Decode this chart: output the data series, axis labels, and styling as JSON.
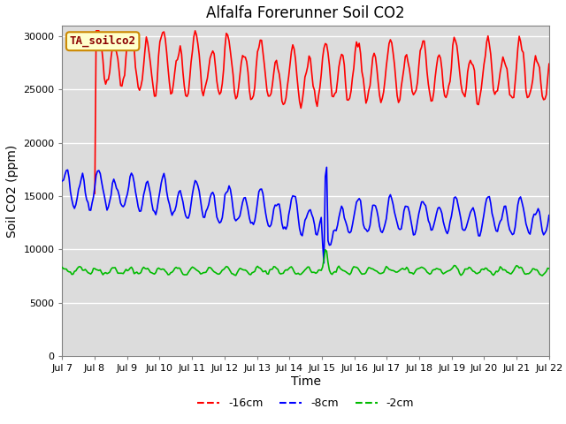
{
  "title": "Alfalfa Forerunner Soil CO2",
  "xlabel": "Time",
  "ylabel": "Soil CO2 (ppm)",
  "annotation": "TA_soilco2",
  "ylim": [
    0,
    31000
  ],
  "yticks": [
    0,
    5000,
    10000,
    15000,
    20000,
    25000,
    30000
  ],
  "xtick_labels": [
    "Jul 7",
    "Jul 8",
    "Jul 9",
    "Jul 10",
    "Jul 11",
    "Jul 12",
    "Jul 13",
    "Jul 14",
    "Jul 15",
    "Jul 16",
    "Jul 17",
    "Jul 18",
    "Jul 19",
    "Jul 20",
    "Jul 21",
    "Jul 22"
  ],
  "colors": {
    "red": "#ff0000",
    "blue": "#0000ff",
    "green": "#00bb00",
    "background": "#dcdcdc",
    "annotation_bg": "#ffffcc",
    "annotation_border": "#cc8800"
  },
  "legend_labels": [
    "-16cm",
    "-8cm",
    "-2cm"
  ],
  "title_fontsize": 12,
  "axis_label_fontsize": 10
}
